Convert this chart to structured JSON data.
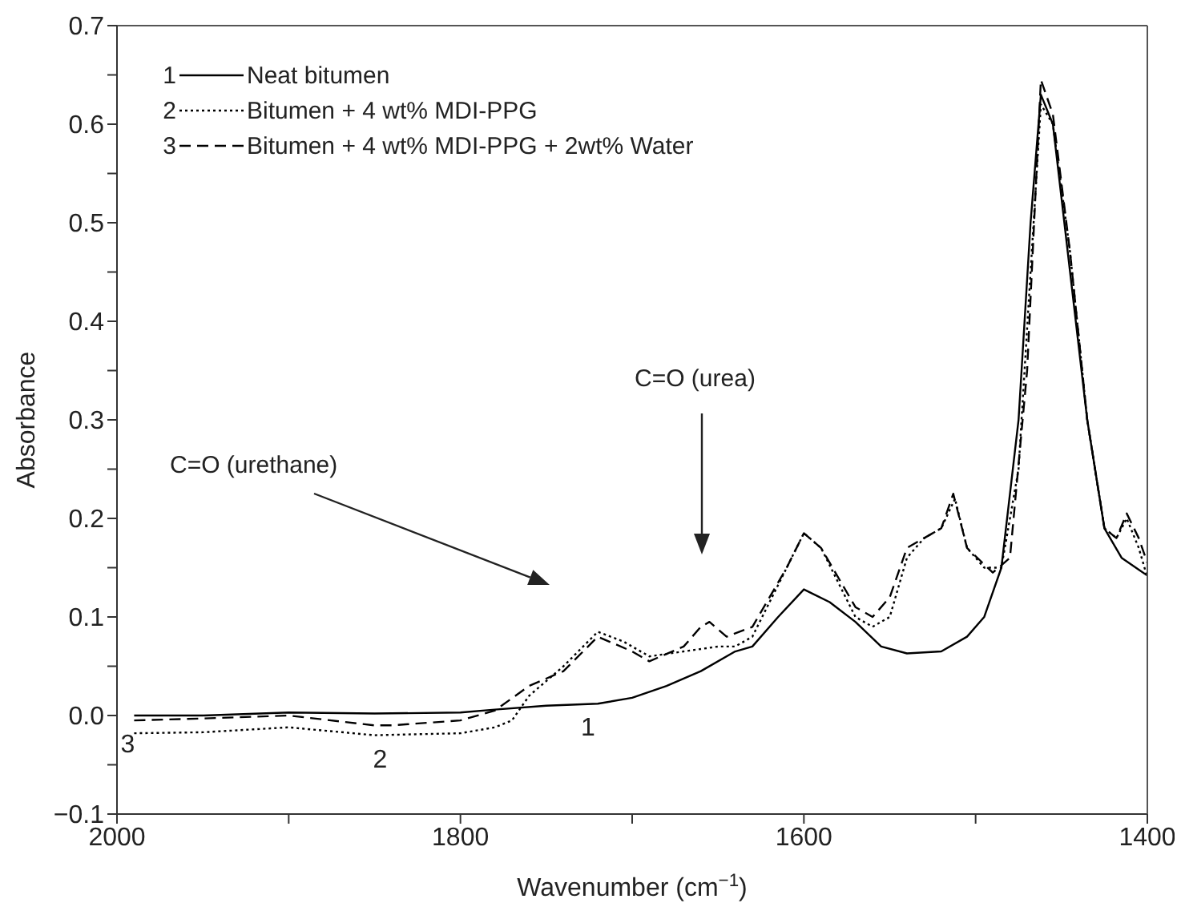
{
  "chart_data": {
    "type": "line",
    "xlabel": "Wavenumber (cm$^{−1}$)",
    "ylabel": "Absorbance",
    "xlim": [
      2000,
      1400
    ],
    "xticks": [
      2000,
      {
        "value": 1900,
        "label": null
      },
      1800,
      {
        "value": 1700,
        "label": null
      },
      1600,
      {
        "value": 1500,
        "label": null
      },
      1400
    ],
    "ylim": [
      -0.1,
      0.7
    ],
    "yticks": [
      {
        "value": -0.1,
        "label": "−0.1"
      },
      {
        "value": -0.05,
        "label": null
      },
      {
        "value": 0,
        "label": "0.0"
      },
      {
        "value": 0.05,
        "label": null
      },
      0.1,
      {
        "value": 0.15,
        "label": null
      },
      0.2,
      {
        "value": 0.25,
        "label": null
      },
      0.3,
      {
        "value": 0.35,
        "label": null
      },
      0.4,
      {
        "value": 0.45,
        "label": null
      },
      0.5,
      {
        "value": 0.55,
        "label": null
      },
      0.6,
      {
        "value": 0.65,
        "label": null
      },
      0.7
    ],
    "grid": false,
    "legend": "top left",
    "marker": "none",
    "series": [
      {
        "name": "Neat bitumen",
        "color": "#000000",
        "line_style": "solid",
        "x": [
          1990,
          1950,
          1900,
          1850,
          1800,
          1780,
          1750,
          1720,
          1700,
          1680,
          1660,
          1640,
          1630,
          1615,
          1600,
          1585,
          1570,
          1555,
          1540,
          1520,
          1505,
          1495,
          1485,
          1475,
          1468,
          1462,
          1455,
          1445,
          1435,
          1425,
          1415,
          1405,
          1400
        ],
        "values": [
          0.0,
          0.0,
          0.003,
          0.002,
          0.003,
          0.006,
          0.01,
          0.012,
          0.018,
          0.03,
          0.045,
          0.065,
          0.07,
          0.1,
          0.128,
          0.115,
          0.095,
          0.07,
          0.063,
          0.065,
          0.08,
          0.1,
          0.15,
          0.3,
          0.5,
          0.63,
          0.6,
          0.45,
          0.3,
          0.19,
          0.16,
          0.148,
          0.142
        ]
      },
      {
        "name": "Bitumen + 4 wt% MDI-PPG",
        "color": "#000000",
        "line_style": "dotted",
        "x": [
          1990,
          1950,
          1900,
          1850,
          1800,
          1780,
          1770,
          1760,
          1740,
          1720,
          1705,
          1690,
          1670,
          1650,
          1640,
          1630,
          1610,
          1600,
          1590,
          1570,
          1560,
          1550,
          1540,
          1530,
          1520,
          1512,
          1505,
          1495,
          1485,
          1475,
          1468,
          1462,
          1455,
          1445,
          1435,
          1425,
          1418,
          1412,
          1405,
          1400
        ],
        "values": [
          -0.018,
          -0.017,
          -0.012,
          -0.02,
          -0.018,
          -0.012,
          -0.005,
          0.02,
          0.05,
          0.085,
          0.075,
          0.06,
          0.065,
          0.07,
          0.07,
          0.08,
          0.15,
          0.185,
          0.17,
          0.1,
          0.09,
          0.1,
          0.16,
          0.18,
          0.19,
          0.22,
          0.17,
          0.15,
          0.15,
          0.25,
          0.45,
          0.62,
          0.6,
          0.47,
          0.3,
          0.19,
          0.18,
          0.2,
          0.17,
          0.14
        ]
      },
      {
        "name": "Bitumen + 4 wt% MDI-PPG + 2wt% Water",
        "color": "#000000",
        "line_style": "dashed",
        "x": [
          1990,
          1950,
          1900,
          1850,
          1840,
          1800,
          1780,
          1760,
          1740,
          1720,
          1700,
          1690,
          1670,
          1660,
          1655,
          1645,
          1630,
          1610,
          1600,
          1590,
          1570,
          1560,
          1550,
          1540,
          1530,
          1520,
          1513,
          1505,
          1490,
          1480,
          1470,
          1462,
          1455,
          1445,
          1435,
          1425,
          1418,
          1412,
          1405,
          1400
        ],
        "values": [
          -0.005,
          -0.003,
          0.0,
          -0.01,
          -0.01,
          -0.005,
          0.005,
          0.03,
          0.045,
          0.08,
          0.065,
          0.055,
          0.07,
          0.09,
          0.095,
          0.08,
          0.09,
          0.15,
          0.185,
          0.17,
          0.11,
          0.1,
          0.12,
          0.17,
          0.18,
          0.19,
          0.225,
          0.17,
          0.145,
          0.16,
          0.35,
          0.645,
          0.61,
          0.47,
          0.3,
          0.19,
          0.18,
          0.205,
          0.18,
          0.155
        ]
      }
    ],
    "annotations": [
      "1",
      "2",
      "3",
      {
        "text": "1",
        "x": 1722,
        "y": 0.012
      },
      {
        "text": "2",
        "x": 1843,
        "y": -0.02
      },
      {
        "text": "3",
        "x": 1990,
        "y": -0.005
      },
      "C=O (urethane)",
      "C=O (urea)"
    ]
  }
}
